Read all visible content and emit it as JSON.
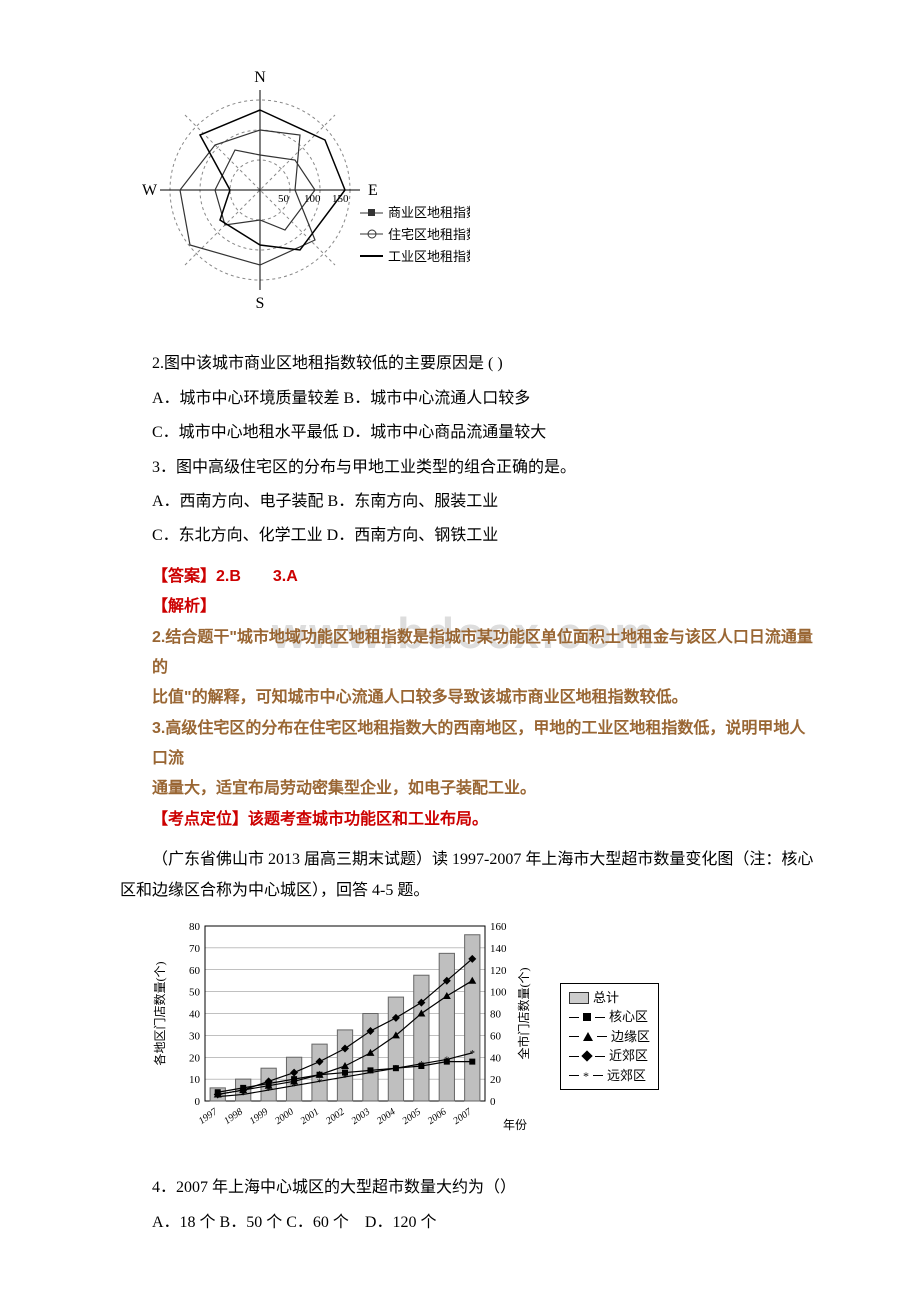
{
  "radar": {
    "type": "radar",
    "axes": [
      "N",
      "E",
      "S",
      "W"
    ],
    "ring_values": [
      50,
      100,
      150
    ],
    "label_fontsize": 12,
    "background_color": "#ffffff",
    "ring_color": "#888888",
    "axis_color": "#000000",
    "series": [
      {
        "name": "商业区地租指数",
        "label": "商业区地租指数",
        "marker": "square",
        "color": "#333333"
      },
      {
        "name": "住宅区地租指数",
        "label": "住宅区地租指数",
        "marker": "circle-open",
        "color": "#333333"
      },
      {
        "name": "工业区地租指数",
        "label": "工业区地租指数",
        "marker": "line",
        "color": "#000000"
      }
    ]
  },
  "q2": {
    "stem": "2.图中该城市商业区地租指数较低的主要原因是 ( )",
    "optA": "A．城市中心环境质量较差 B．城市中心流通人口较多",
    "optC": "C．城市中心地租水平最低 D．城市中心商品流通量较大"
  },
  "q3": {
    "stem": "3．图中高级住宅区的分布与甲地工业类型的组合正确的是。",
    "optA": "A．西南方向、电子装配 B．东南方向、服装工业",
    "optC": "C．东北方向、化学工业 D．西南方向、钢铁工业"
  },
  "ans": {
    "title": "【答案】2.B　　3.A",
    "jiexi": "【解析】",
    "line2": "2.结合题干\"城市地域功能区地租指数是指城市某功能区单位面积土地租金与该区人口日流通量的",
    "line2b": "比值\"的解释，可知城市中心流通人口较多导致该城市商业区地租指数较低。",
    "line3": "3.高级住宅区的分布在住宅区地租指数大的西南地区，甲地的工业区地租指数低，说明甲地人口流",
    "line3b": "通量大，适宜布局劳动密集型企业，如电子装配工业。",
    "kdd": "【考点定位】该题考查城市功能区和工业布局。"
  },
  "watermark": "www.bdocx.com",
  "intro4": "（广东省佛山市 2013 届高三期末试题）读 1997-2007 年上海市大型超市数量变化图（注：核心区和边缘区合称为中心城区），回答 4-5 题。",
  "chart": {
    "type": "bar+line",
    "x_labels": [
      "1997",
      "1998",
      "1999",
      "2000",
      "2001",
      "2002",
      "2003",
      "2004",
      "2005",
      "2006",
      "2007"
    ],
    "left_axis": {
      "label": "各地区门店数量(个)",
      "min": 0,
      "max": 80,
      "step": 10,
      "fontsize": 12
    },
    "right_axis": {
      "label": "全市门店数量(个)",
      "min": 0,
      "max": 160,
      "step": 20,
      "fontsize": 12
    },
    "x_label": "年份",
    "background_color": "#ffffff",
    "grid_color": "#808080",
    "total_bar": {
      "label": "总计",
      "values": [
        12,
        20,
        30,
        40,
        52,
        65,
        80,
        95,
        115,
        135,
        152
      ],
      "color": "#bfbfbf",
      "border": "#666666",
      "bar_width": 0.6
    },
    "series": [
      {
        "name": "核心区",
        "label": "核心区",
        "marker": "square",
        "color": "#000000",
        "values": [
          4,
          6,
          8,
          10,
          12,
          13,
          14,
          15,
          16,
          18,
          18
        ]
      },
      {
        "name": "边缘区",
        "label": "边缘区",
        "marker": "triangle",
        "color": "#000000",
        "values": [
          3,
          5,
          7,
          9,
          12,
          16,
          22,
          30,
          40,
          48,
          55
        ]
      },
      {
        "name": "近郊区",
        "label": "近郊区",
        "marker": "diamond",
        "color": "#000000",
        "values": [
          3,
          5,
          9,
          13,
          18,
          24,
          32,
          38,
          45,
          55,
          65
        ]
      },
      {
        "name": "远郊区",
        "label": "远郊区",
        "marker": "star",
        "color": "#000000",
        "values": [
          2,
          3,
          5,
          7,
          9,
          11,
          13,
          15,
          17,
          19,
          22
        ]
      }
    ]
  },
  "legend4": {
    "total": "总计",
    "core": "核心区",
    "edge": "边缘区",
    "near": "近郊区",
    "far": "远郊区"
  },
  "q4": {
    "stem": "4．2007 年上海中心城区的大型超市数量大约为（）",
    "optA": "A．18 个 B．50 个  C．60 个　D．120 个"
  }
}
